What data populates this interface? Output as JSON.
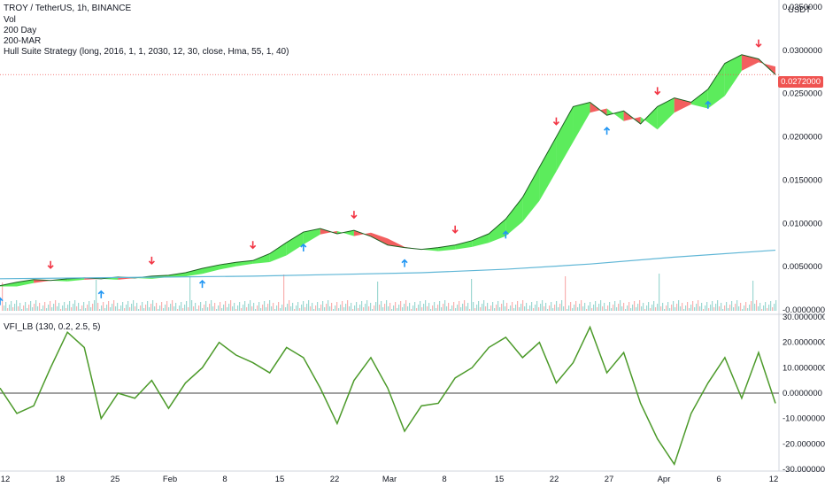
{
  "legend": {
    "symbol_line": "TROY / TetherUS, 1h, BINANCE",
    "line2": "Vol",
    "line3": "200 Day",
    "line4": "200-MAR",
    "line5": "Hull Suite Strategy (long, 2016, 1, 1, 2030, 12, 30, close, Hma, 55, 1, 40)"
  },
  "currency": "USDT",
  "last_price_label": "0.0272000",
  "oscillator_label": "VFI_LB (130, 0.2, 2.5, 5)",
  "colors": {
    "up": "#26e626",
    "down": "#ef2a2a",
    "candle_up": "#26a69a",
    "candle_down": "#ef5350",
    "ma200": "#5fb6d6",
    "vfi": "#4c9a2a",
    "zero_line": "#808080",
    "last_price": "#ef5350",
    "long_arrow": "#2196f3",
    "short_arrow": "#f23645"
  },
  "chart_data": [
    {
      "type": "line",
      "panel": "price",
      "y_ticks": [
        "0.0350000",
        "0.0300000",
        "0.0250000",
        "0.0200000",
        "0.0150000",
        "0.0100000",
        "0.0050000",
        "-0.0000000"
      ],
      "ylim": [
        0,
        0.035
      ],
      "x_ticks": [
        "12",
        "18",
        "25",
        "Feb",
        "8",
        "15",
        "22",
        "Mar",
        "8",
        "15",
        "22",
        "27",
        "Apr",
        "6",
        "12"
      ],
      "series": [
        {
          "x": [
            0,
            2,
            4,
            6,
            8,
            10,
            12,
            14,
            16,
            18,
            20,
            22,
            24,
            26,
            28,
            30,
            32,
            34,
            36,
            38,
            40,
            42,
            44,
            46,
            48,
            50,
            52,
            54,
            56,
            58,
            60,
            62,
            64,
            66,
            68,
            70,
            72,
            74,
            76,
            78,
            80,
            82,
            84,
            86,
            88,
            90,
            92
          ],
          "values": [
            0.0028,
            0.0032,
            0.0035,
            0.0034,
            0.0036,
            0.0037,
            0.0036,
            0.0038,
            0.0037,
            0.0039,
            0.004,
            0.0043,
            0.0048,
            0.0052,
            0.0055,
            0.0057,
            0.0065,
            0.0078,
            0.009,
            0.0094,
            0.0088,
            0.0092,
            0.0085,
            0.0075,
            0.0072,
            0.007,
            0.0072,
            0.0075,
            0.008,
            0.0088,
            0.0105,
            0.013,
            0.0165,
            0.02,
            0.0235,
            0.024,
            0.0225,
            0.023,
            0.0215,
            0.0235,
            0.0245,
            0.024,
            0.0255,
            0.0285,
            0.0295,
            0.029,
            0.0272
          ]
        },
        {
          "x": [
            0,
            10,
            20,
            30,
            40,
            50,
            60,
            70,
            80,
            92
          ],
          "values": [
            0.0036,
            0.0037,
            0.0038,
            0.0039,
            0.0041,
            0.0043,
            0.0047,
            0.0053,
            0.0061,
            0.0069
          ]
        }
      ]
    },
    {
      "type": "line",
      "panel": "oscillator",
      "y_ticks": [
        "30.0000000",
        "20.0000000",
        "10.0000000",
        "0.0000000",
        "-10.0000000",
        "-20.0000000",
        "-30.0000000"
      ],
      "ylim": [
        -30,
        30
      ],
      "x_ticks": [
        "12",
        "18",
        "25",
        "Feb",
        "8",
        "15",
        "22",
        "Mar",
        "8",
        "15",
        "22",
        "27",
        "Apr",
        "6",
        "12"
      ],
      "series": [
        {
          "x": [
            0,
            2,
            4,
            6,
            8,
            10,
            12,
            14,
            16,
            18,
            20,
            22,
            24,
            26,
            28,
            30,
            32,
            34,
            36,
            38,
            40,
            42,
            44,
            46,
            48,
            50,
            52,
            54,
            56,
            58,
            60,
            62,
            64,
            66,
            68,
            70,
            72,
            74,
            76,
            78,
            80,
            82,
            84,
            86,
            88,
            90,
            92
          ],
          "values": [
            2,
            -8,
            -5,
            10,
            24,
            18,
            -10,
            0,
            -2,
            5,
            -6,
            4,
            10,
            20,
            15,
            12,
            8,
            18,
            14,
            2,
            -12,
            5,
            14,
            2,
            -15,
            -5,
            -4,
            6,
            10,
            18,
            22,
            14,
            20,
            4,
            12,
            26,
            8,
            16,
            -4,
            -18,
            -28,
            -8,
            4,
            14,
            -2,
            16,
            -4
          ]
        }
      ]
    }
  ]
}
